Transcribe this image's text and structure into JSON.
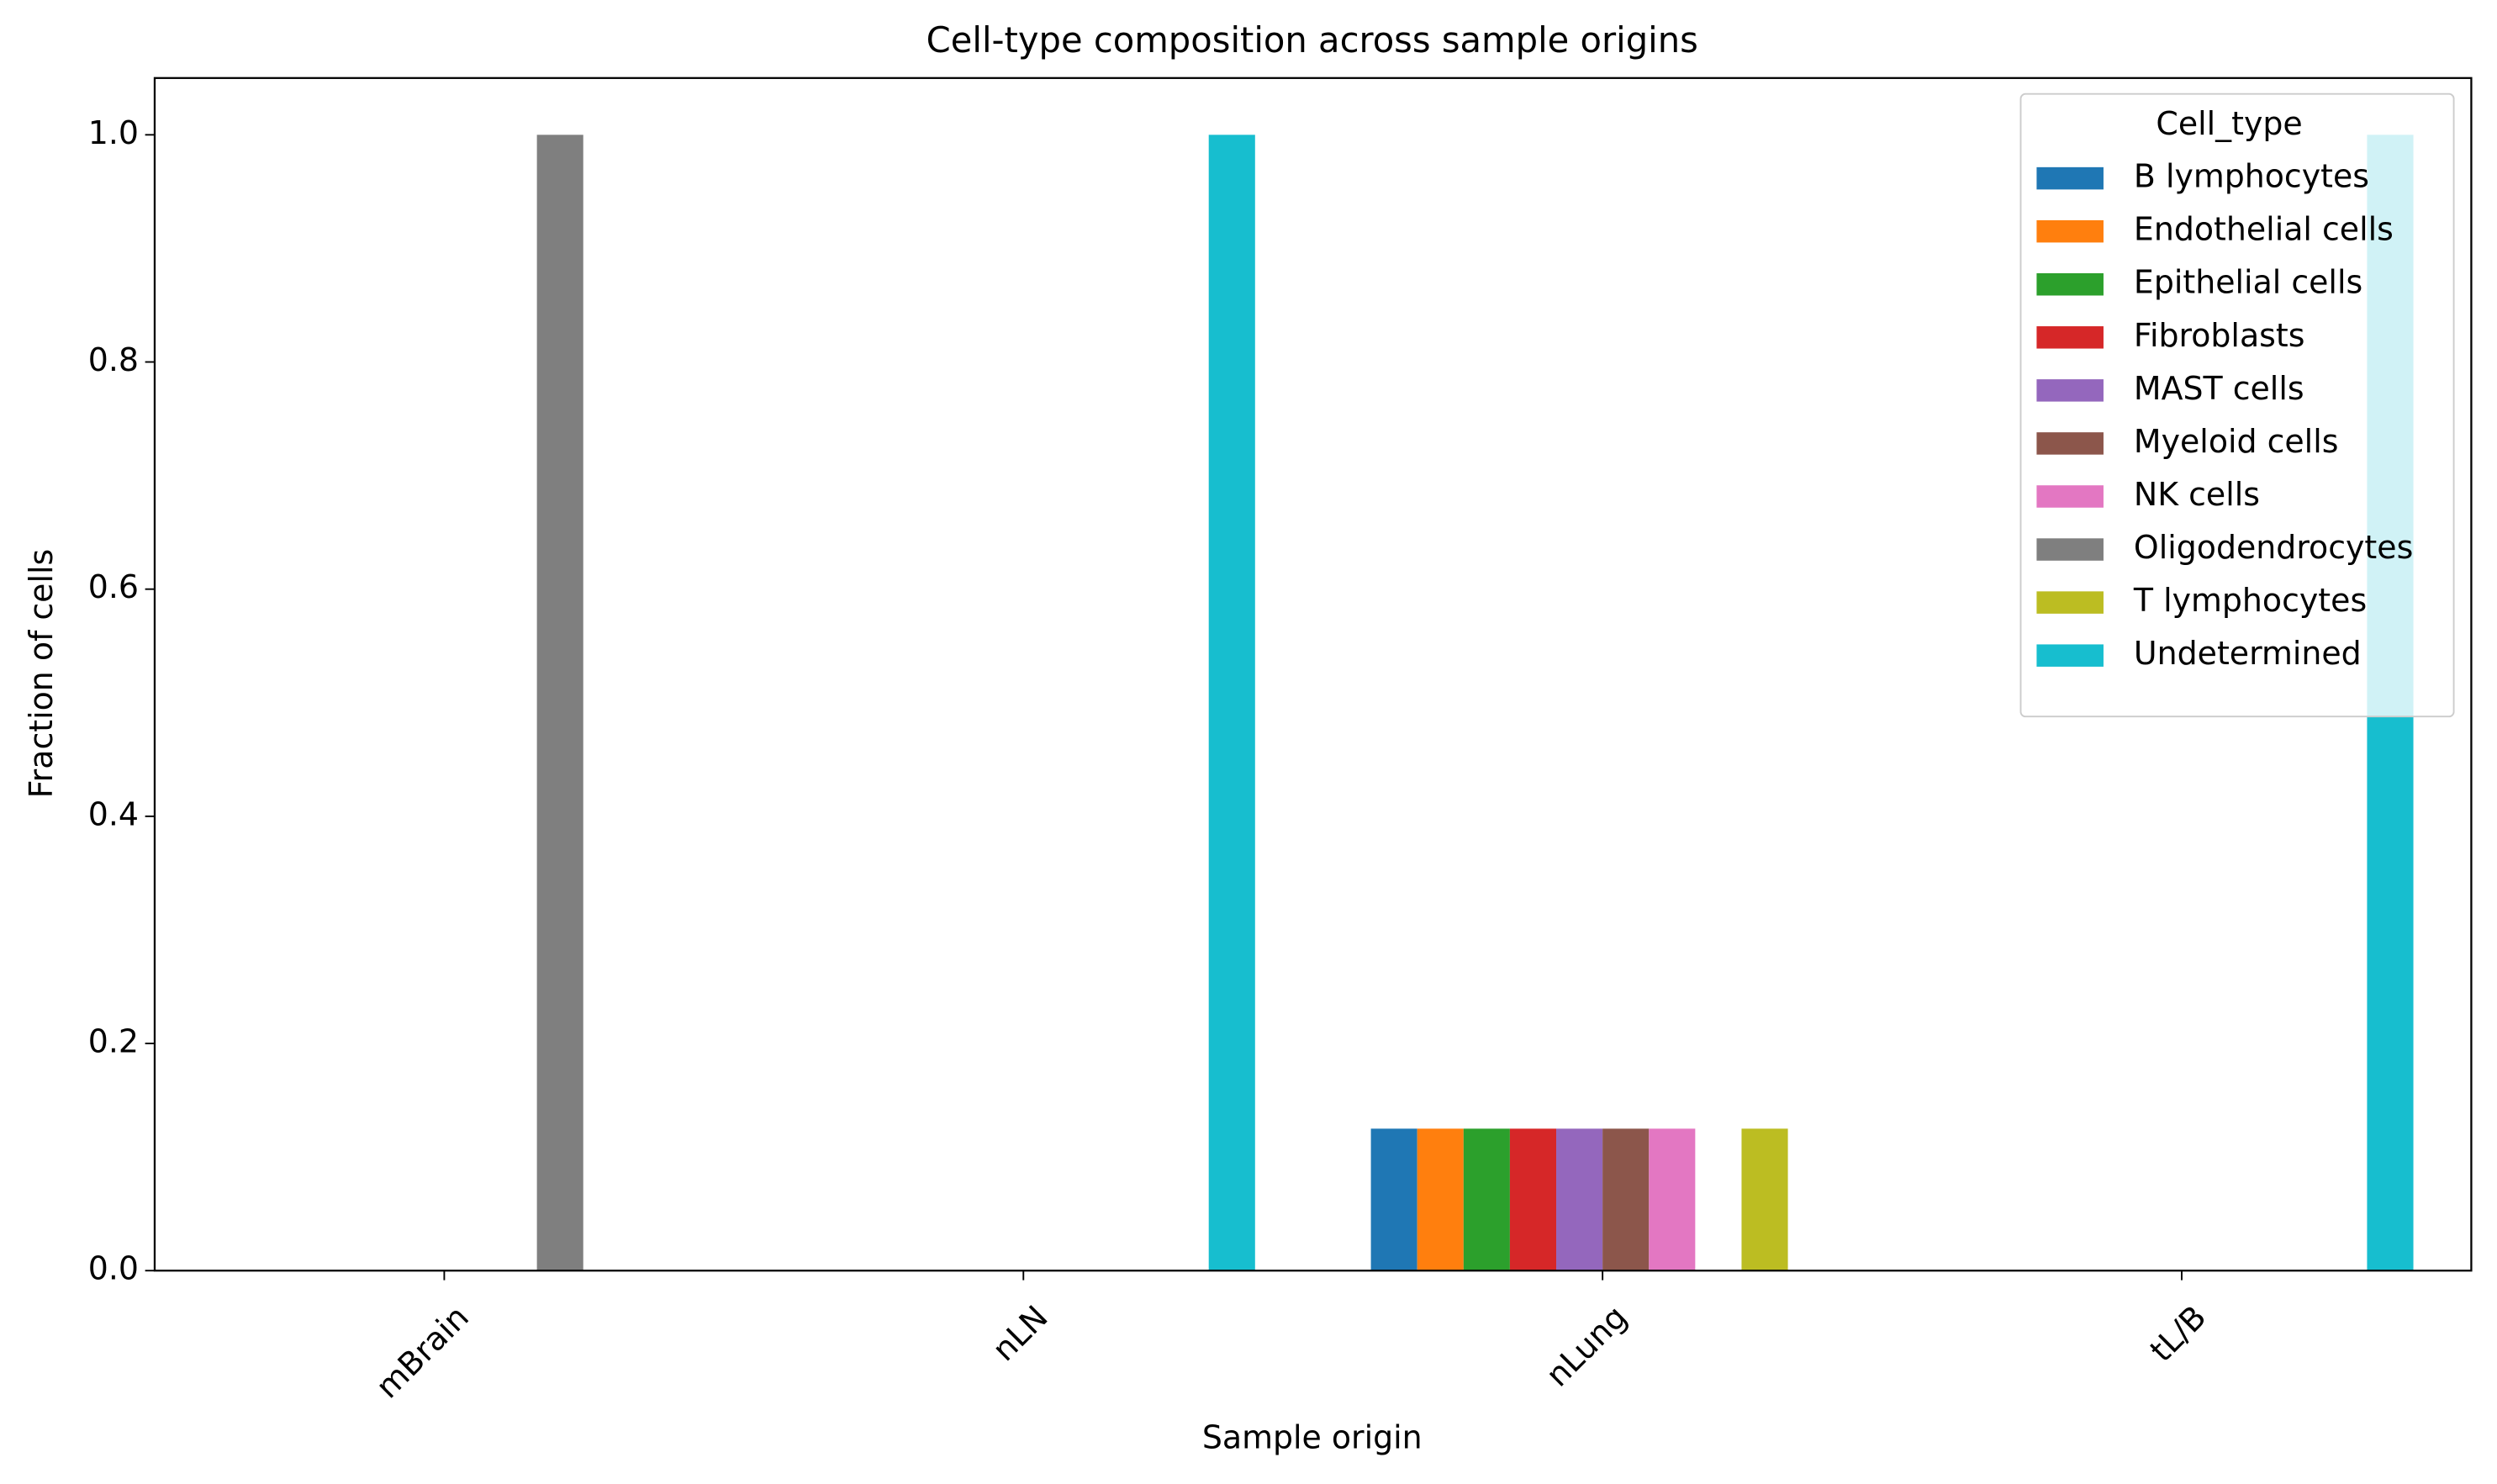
{
  "chart_data": {
    "type": "bar",
    "title": "Cell-type composition across sample origins",
    "xlabel": "Sample origin",
    "ylabel": "Fraction of cells",
    "categories": [
      "mBrain",
      "nLN",
      "nLung",
      "tL/B"
    ],
    "ylim": [
      0,
      1.05
    ],
    "yticks": [
      {
        "value": 0,
        "label": "0.0"
      },
      0.2,
      0.4,
      0.6,
      0.8,
      {
        "value": 1,
        "label": "1.0"
      }
    ],
    "legend_title": "Cell_type",
    "legend": "upper right",
    "series": [
      {
        "name": "B lymphocytes",
        "color": "#1f77b4",
        "values": [
          0,
          0,
          0.125,
          0
        ]
      },
      {
        "name": "Endothelial cells",
        "color": "#ff7f0e",
        "values": [
          0,
          0,
          0.125,
          0
        ]
      },
      {
        "name": "Epithelial cells",
        "color": "#2ca02c",
        "values": [
          0,
          0,
          0.125,
          0
        ]
      },
      {
        "name": "Fibroblasts",
        "color": "#d62728",
        "values": [
          0,
          0,
          0.125,
          0
        ]
      },
      {
        "name": "MAST cells",
        "color": "#9467bd",
        "values": [
          0,
          0,
          0.125,
          0
        ]
      },
      {
        "name": "Myeloid cells",
        "color": "#8c564b",
        "values": [
          0,
          0,
          0.125,
          0
        ]
      },
      {
        "name": "NK cells",
        "color": "#e377c2",
        "values": [
          0,
          0,
          0.125,
          0
        ]
      },
      {
        "name": "Oligodendrocytes",
        "color": "#7f7f7f",
        "values": [
          1,
          0,
          0,
          0
        ]
      },
      {
        "name": "T lymphocytes",
        "color": "#bcbd22",
        "values": [
          0,
          0,
          0.125,
          0
        ]
      },
      {
        "name": "Undetermined",
        "color": "#17becf",
        "values": [
          0,
          1,
          0,
          1
        ]
      }
    ]
  }
}
